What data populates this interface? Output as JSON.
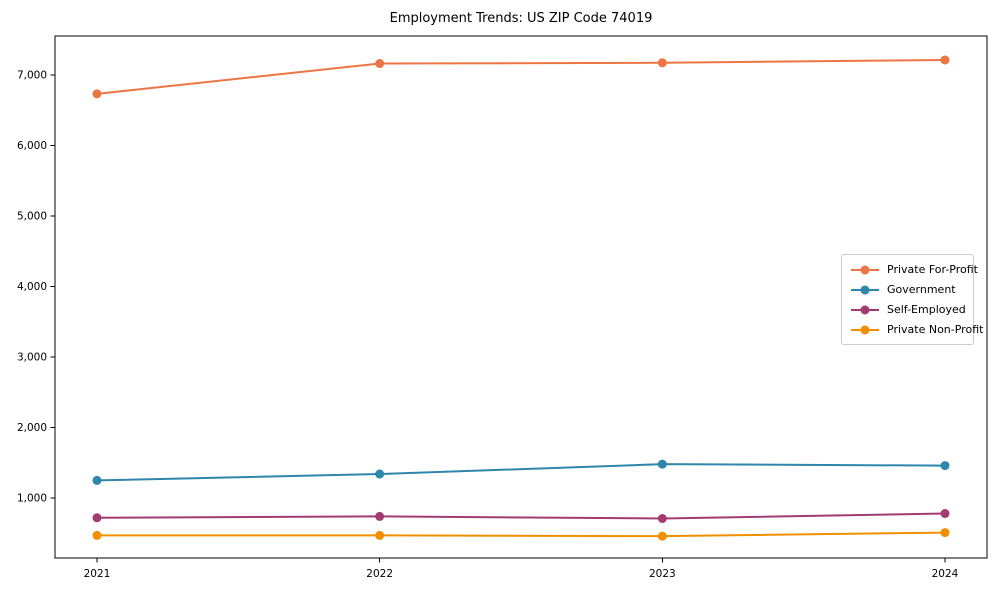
{
  "chart_title": "Employment Trends: US ZIP Code 74019",
  "chart_data": {
    "type": "line",
    "title": "Employment Trends: US ZIP Code 74019",
    "xlabel": "",
    "ylabel": "",
    "categories": [
      "2021",
      "2022",
      "2023",
      "2024"
    ],
    "series": [
      {
        "name": "Private For-Profit",
        "color": "#ec7546",
        "values": [
          6730,
          7160,
          7170,
          7210
        ]
      },
      {
        "name": "Government",
        "color": "#2e86ab",
        "values": [
          1250,
          1340,
          1480,
          1460
        ]
      },
      {
        "name": "Self-Employed",
        "color": "#a23b72",
        "values": [
          720,
          740,
          710,
          780
        ]
      },
      {
        "name": "Private Non-Profit",
        "color": "#f18f01",
        "values": [
          470,
          470,
          460,
          510
        ]
      }
    ],
    "ylim": [
      150,
      7550
    ],
    "yticks": [
      1000,
      2000,
      3000,
      4000,
      5000,
      6000,
      7000
    ],
    "ytick_labels": [
      "1,000",
      "2,000",
      "3,000",
      "4,000",
      "5,000",
      "6,000",
      "7,000"
    ],
    "grid": false,
    "legend_position": "right-center",
    "frame": "full-box"
  }
}
